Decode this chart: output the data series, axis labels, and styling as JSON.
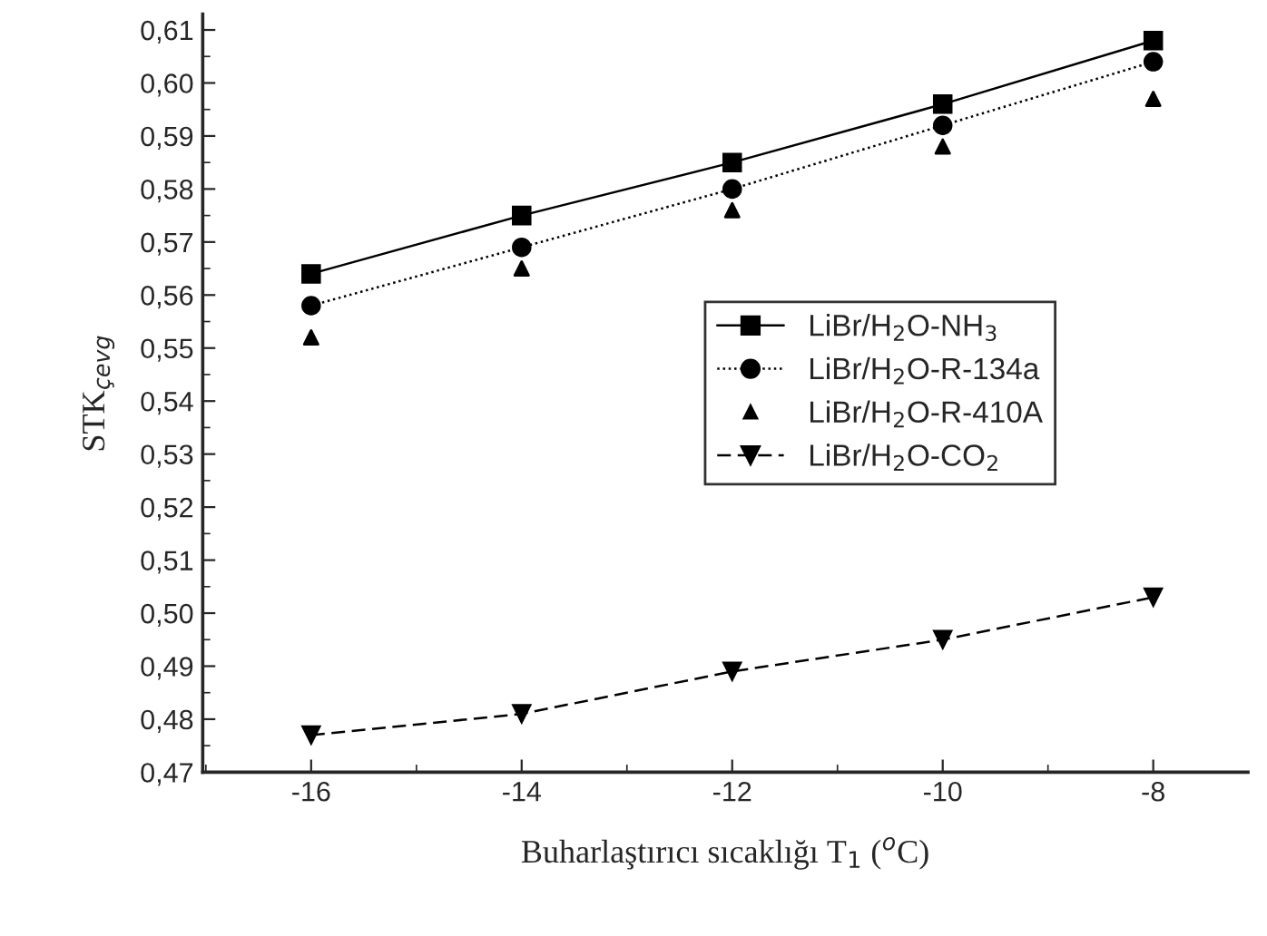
{
  "chart_data": {
    "type": "line",
    "xlabel": "Buharlaştırıcı sıcaklığı T$_{1}$ ($^{o}$C)",
    "ylabel": "STK$_{çevg}$",
    "x": [
      -16,
      -14,
      -12,
      -10,
      -8
    ],
    "series": [
      {
        "name": "LiBr/H$_{2}$O-NH$_{3}$",
        "color": "#000000",
        "marker": "square",
        "line_style": "solid",
        "values": [
          0.564,
          0.575,
          0.585,
          0.596,
          0.608
        ]
      },
      {
        "name": "LiBr/H$_{2}$O-R-134a",
        "color": "#000000",
        "marker": "circle",
        "line_style": "dotted",
        "values": [
          0.558,
          0.569,
          0.58,
          0.592,
          0.604
        ]
      },
      {
        "name": "LiBr/H$_{2}$O-R-410A",
        "type": "scatter",
        "color": "#000000",
        "marker": "triangle",
        "values": [
          0.552,
          0.565,
          0.576,
          0.588,
          0.597
        ]
      },
      {
        "name": "LiBr/H$_{2}$O-CO$_{2}$",
        "color": "#000000",
        "marker": "triangle_down",
        "line_style": "dashed",
        "values": [
          0.477,
          0.481,
          0.489,
          0.495,
          0.503
        ]
      }
    ],
    "xlim": [
      -17.03,
      -7.1
    ],
    "xticks": [
      -16,
      -14,
      -12,
      -10,
      -8
    ],
    "ylim": [
      0.47,
      0.613
    ],
    "yticks": [
      {
        "value": 0.47,
        "label": "0,47"
      },
      {
        "value": 0.48,
        "label": "0,48"
      },
      {
        "value": 0.49,
        "label": "0,49"
      },
      {
        "value": 0.5,
        "label": "0,50"
      },
      {
        "value": 0.51,
        "label": "0,51"
      },
      {
        "value": 0.52,
        "label": "0,52"
      },
      {
        "value": 0.53,
        "label": "0,53"
      },
      {
        "value": 0.54,
        "label": "0,54"
      },
      {
        "value": 0.55,
        "label": "0,55"
      },
      {
        "value": 0.56,
        "label": "0,56"
      },
      {
        "value": 0.57,
        "label": "0,57"
      },
      {
        "value": 0.58,
        "label": "0,58"
      },
      {
        "value": 0.59,
        "label": "0,59"
      },
      {
        "value": 0.6,
        "label": "0,60"
      },
      {
        "value": 0.61,
        "label": "0,61"
      }
    ],
    "grid": false,
    "legend": "center right"
  }
}
